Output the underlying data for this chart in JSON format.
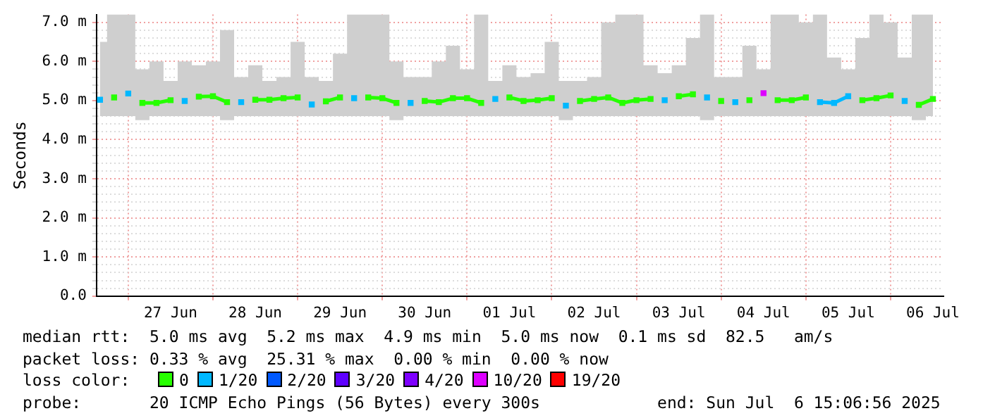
{
  "chart_data": {
    "type": "line",
    "ylabel": "Seconds",
    "legend_title": "loss color:",
    "legend": "bottom",
    "grid": true,
    "marker": "square",
    "line_style": "solid",
    "annotations": [
      "median rtt:  5.0 ms avg  5.2 ms max  4.9 ms min  5.0 ms now  0.1 ms sd  82.5   am/s",
      "packet loss: 0.33 % avg  25.31 % max  0.00 % min  0.00 % now",
      "probe:       20 ICMP Echo Pings (56 Bytes) every 300s            end: Sun Jul  6 15:06:56 2025"
    ],
    "xlim": [
      "2025-06-26T15:00",
      "2025-07-06T15:00"
    ],
    "xticks": [
      {
        "value": "2025-06-27T00:00",
        "label": null
      },
      {
        "value": "2025-06-27T12:00",
        "label": "27 Jun"
      },
      {
        "value": "2025-06-28T00:00",
        "label": null
      },
      {
        "value": "2025-06-28T12:00",
        "label": "28 Jun"
      },
      {
        "value": "2025-06-29T00:00",
        "label": null
      },
      {
        "value": "2025-06-29T12:00",
        "label": "29 Jun"
      },
      {
        "value": "2025-06-30T00:00",
        "label": null
      },
      {
        "value": "2025-06-30T12:00",
        "label": "30 Jun"
      },
      {
        "value": "2025-07-01T00:00",
        "label": null
      },
      {
        "value": "2025-07-01T12:00",
        "label": "01 Jul"
      },
      {
        "value": "2025-07-02T00:00",
        "label": null
      },
      {
        "value": "2025-07-02T12:00",
        "label": "02 Jul"
      },
      {
        "value": "2025-07-03T00:00",
        "label": null
      },
      {
        "value": "2025-07-03T12:00",
        "label": "03 Jul"
      },
      {
        "value": "2025-07-04T00:00",
        "label": null
      },
      {
        "value": "2025-07-04T12:00",
        "label": "04 Jul"
      },
      {
        "value": "2025-07-05T00:00",
        "label": null
      },
      {
        "value": "2025-07-05T12:00",
        "label": "05 Jul"
      },
      {
        "value": "2025-07-06T00:00",
        "label": null
      },
      {
        "value": "2025-07-06T12:00",
        "label": "06 Jul"
      }
    ],
    "ylim": [
      0,
      7.2
    ],
    "yticks": [
      {
        "value": 0,
        "label": "0.0"
      },
      {
        "value": 0.2,
        "label": null
      },
      {
        "value": 0.4,
        "label": null
      },
      {
        "value": 0.6,
        "label": null
      },
      {
        "value": 0.8,
        "label": null
      },
      {
        "value": 1,
        "label": "1.0 m"
      },
      {
        "value": 1.2,
        "label": null
      },
      {
        "value": 1.4,
        "label": null
      },
      {
        "value": 1.6,
        "label": null
      },
      {
        "value": 1.8,
        "label": null
      },
      {
        "value": 2,
        "label": "2.0 m"
      },
      {
        "value": 2.2,
        "label": null
      },
      {
        "value": 2.4,
        "label": null
      },
      {
        "value": 2.6,
        "label": null
      },
      {
        "value": 2.8,
        "label": null
      },
      {
        "value": 3,
        "label": "3.0 m"
      },
      {
        "value": 3.2,
        "label": null
      },
      {
        "value": 3.4,
        "label": null
      },
      {
        "value": 3.6,
        "label": null
      },
      {
        "value": 3.8,
        "label": null
      },
      {
        "value": 4,
        "label": "4.0 m"
      },
      {
        "value": 4.2,
        "label": null
      },
      {
        "value": 4.4,
        "label": null
      },
      {
        "value": 4.6,
        "label": null
      },
      {
        "value": 4.8,
        "label": null
      },
      {
        "value": 5,
        "label": "5.0 m"
      },
      {
        "value": 5.2,
        "label": null
      },
      {
        "value": 5.4,
        "label": null
      },
      {
        "value": 5.6,
        "label": null
      },
      {
        "value": 5.8,
        "label": null
      },
      {
        "value": 6,
        "label": "6.0 m"
      },
      {
        "value": 6.2,
        "label": null
      },
      {
        "value": 6.4,
        "label": null
      },
      {
        "value": 6.6,
        "label": null
      },
      {
        "value": 6.8,
        "label": null
      },
      {
        "value": 7,
        "label": "7.0 m"
      }
    ],
    "x": [
      "2025-06-26T16:00",
      "2025-06-26T20:00",
      "2025-06-27T00:00",
      "2025-06-27T04:00",
      "2025-06-27T08:00",
      "2025-06-27T12:00",
      "2025-06-27T16:00",
      "2025-06-27T20:00",
      "2025-06-28T00:00",
      "2025-06-28T04:00",
      "2025-06-28T08:00",
      "2025-06-28T12:00",
      "2025-06-28T16:00",
      "2025-06-28T20:00",
      "2025-06-29T00:00",
      "2025-06-29T04:00",
      "2025-06-29T08:00",
      "2025-06-29T12:00",
      "2025-06-29T16:00",
      "2025-06-29T20:00",
      "2025-06-30T00:00",
      "2025-06-30T04:00",
      "2025-06-30T08:00",
      "2025-06-30T12:00",
      "2025-06-30T16:00",
      "2025-06-30T20:00",
      "2025-07-01T00:00",
      "2025-07-01T04:00",
      "2025-07-01T08:00",
      "2025-07-01T12:00",
      "2025-07-01T16:00",
      "2025-07-01T20:00",
      "2025-07-02T00:00",
      "2025-07-02T04:00",
      "2025-07-02T08:00",
      "2025-07-02T12:00",
      "2025-07-02T16:00",
      "2025-07-02T20:00",
      "2025-07-03T00:00",
      "2025-07-03T04:00",
      "2025-07-03T08:00",
      "2025-07-03T12:00",
      "2025-07-03T16:00",
      "2025-07-03T20:00",
      "2025-07-04T00:00",
      "2025-07-04T04:00",
      "2025-07-04T08:00",
      "2025-07-04T12:00",
      "2025-07-04T16:00",
      "2025-07-04T20:00",
      "2025-07-05T00:00",
      "2025-07-05T04:00",
      "2025-07-05T08:00",
      "2025-07-05T12:00",
      "2025-07-05T16:00",
      "2025-07-05T20:00",
      "2025-07-06T00:00",
      "2025-07-06T04:00",
      "2025-07-06T08:00",
      "2025-07-06T12:00"
    ],
    "series": [
      {
        "name": "0",
        "color": "#26ff00",
        "values": [
          null,
          5.08,
          null,
          4.94,
          4.94,
          5.01,
          null,
          5.1,
          5.11,
          4.96,
          null,
          5.02,
          5.02,
          5.06,
          5.08,
          null,
          4.98,
          5.08,
          null,
          5.08,
          5.06,
          4.94,
          null,
          4.99,
          4.96,
          5.06,
          5.06,
          4.94,
          null,
          5.08,
          4.99,
          5.01,
          5.06,
          null,
          4.99,
          5.04,
          5.08,
          4.94,
          5.01,
          5.04,
          null,
          5.11,
          5.16,
          null,
          4.99,
          null,
          5.01,
          null,
          5.01,
          5.01,
          5.08,
          null,
          null,
          null,
          5.01,
          5.06,
          5.13,
          null,
          4.89,
          5.04
        ],
        "lower": [
          4.6,
          4.6,
          4.6,
          4.5,
          4.6,
          4.6,
          4.6,
          4.6,
          4.6,
          4.5,
          4.6,
          4.6,
          4.6,
          4.6,
          4.6,
          4.6,
          4.6,
          4.6,
          4.6,
          4.6,
          4.6,
          4.5,
          4.6,
          4.6,
          4.6,
          4.6,
          4.6,
          4.6,
          4.6,
          4.6,
          4.6,
          4.6,
          4.6,
          4.5,
          4.6,
          4.6,
          4.6,
          4.6,
          4.6,
          4.6,
          4.6,
          4.6,
          4.6,
          4.5,
          4.6,
          4.6,
          4.6,
          4.6,
          4.6,
          4.6,
          4.6,
          4.6,
          4.6,
          4.6,
          4.6,
          4.6,
          4.6,
          4.6,
          4.5,
          4.6
        ],
        "upper": [
          6.5,
          7.2,
          7.2,
          5.8,
          6.0,
          5.5,
          6.0,
          5.9,
          6.0,
          6.8,
          5.6,
          5.9,
          5.5,
          5.6,
          6.5,
          5.6,
          5.5,
          6.2,
          7.2,
          7.2,
          7.2,
          6.0,
          5.6,
          5.6,
          6.0,
          6.4,
          5.8,
          7.2,
          5.5,
          5.9,
          5.6,
          5.7,
          6.5,
          5.5,
          5.5,
          5.6,
          7.0,
          7.2,
          7.2,
          5.9,
          5.7,
          5.9,
          6.6,
          7.2,
          5.6,
          5.6,
          6.4,
          5.8,
          7.2,
          7.2,
          7.0,
          7.2,
          6.1,
          5.8,
          6.6,
          7.2,
          7.0,
          6.1,
          7.2,
          7.2
        ]
      },
      {
        "name": "1/20",
        "color": "#00b8ff",
        "values": [
          5.02,
          null,
          5.18,
          null,
          null,
          null,
          4.99,
          null,
          null,
          null,
          4.96,
          null,
          null,
          null,
          null,
          4.9,
          null,
          null,
          5.06,
          null,
          null,
          null,
          4.94,
          null,
          null,
          null,
          null,
          null,
          5.04,
          null,
          null,
          null,
          null,
          4.87,
          null,
          null,
          null,
          null,
          null,
          null,
          5.01,
          null,
          null,
          5.08,
          null,
          4.96,
          null,
          null,
          null,
          null,
          null,
          4.96,
          4.94,
          5.11,
          null,
          null,
          null,
          4.99,
          null,
          null
        ]
      },
      {
        "name": "2/20",
        "color": "#0059ff",
        "values": [
          null,
          null,
          null,
          null,
          null,
          null,
          null,
          null,
          null,
          null,
          null,
          null,
          null,
          null,
          null,
          null,
          null,
          null,
          null,
          null,
          null,
          null,
          null,
          null,
          null,
          null,
          null,
          null,
          null,
          null,
          null,
          null,
          null,
          null,
          null,
          null,
          null,
          null,
          null,
          null,
          null,
          null,
          null,
          null,
          null,
          null,
          null,
          null,
          null,
          null,
          null,
          null,
          null,
          null,
          null,
          null,
          null,
          null,
          null,
          null
        ]
      },
      {
        "name": "3/20",
        "color": "#5e00ff",
        "values": [
          null,
          null,
          null,
          null,
          null,
          null,
          null,
          null,
          null,
          null,
          null,
          null,
          null,
          null,
          null,
          null,
          null,
          null,
          null,
          null,
          null,
          null,
          null,
          null,
          null,
          null,
          null,
          null,
          null,
          null,
          null,
          null,
          null,
          null,
          null,
          null,
          null,
          null,
          null,
          null,
          null,
          null,
          null,
          null,
          null,
          null,
          null,
          null,
          null,
          null,
          null,
          null,
          null,
          null,
          null,
          null,
          null,
          null,
          null,
          null
        ]
      },
      {
        "name": "4/20",
        "color": "#7e00ff",
        "values": [
          null,
          null,
          null,
          null,
          null,
          null,
          null,
          null,
          null,
          null,
          null,
          null,
          null,
          null,
          null,
          null,
          null,
          null,
          null,
          null,
          null,
          null,
          null,
          null,
          null,
          null,
          null,
          null,
          null,
          null,
          null,
          null,
          null,
          null,
          null,
          null,
          null,
          null,
          null,
          null,
          null,
          null,
          null,
          null,
          null,
          null,
          null,
          null,
          null,
          null,
          null,
          null,
          null,
          null,
          null,
          null,
          null,
          null,
          null,
          null
        ]
      },
      {
        "name": "10/20",
        "color": "#dd00ff",
        "values": [
          null,
          null,
          null,
          null,
          null,
          null,
          null,
          null,
          null,
          null,
          null,
          null,
          null,
          null,
          null,
          null,
          null,
          null,
          null,
          null,
          null,
          null,
          null,
          null,
          null,
          null,
          null,
          null,
          null,
          null,
          null,
          null,
          null,
          null,
          null,
          null,
          null,
          null,
          null,
          null,
          null,
          null,
          null,
          null,
          null,
          null,
          null,
          5.19,
          null,
          null,
          null,
          null,
          null,
          null,
          null,
          null,
          null,
          null,
          null,
          null
        ]
      },
      {
        "name": "19/20",
        "color": "#ff0000",
        "values": [
          null,
          null,
          null,
          null,
          null,
          null,
          null,
          null,
          null,
          null,
          null,
          null,
          null,
          null,
          null,
          null,
          null,
          null,
          null,
          null,
          null,
          null,
          null,
          null,
          null,
          null,
          null,
          null,
          null,
          null,
          null,
          null,
          null,
          null,
          null,
          null,
          null,
          null,
          null,
          null,
          null,
          null,
          null,
          null,
          null,
          null,
          null,
          null,
          null,
          null,
          null,
          null,
          null,
          null,
          null,
          null,
          null,
          null,
          null,
          null
        ]
      }
    ]
  }
}
